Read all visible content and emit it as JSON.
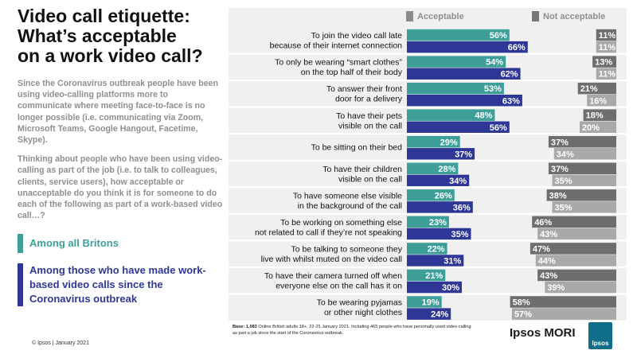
{
  "title": "Video call etiquette:\nWhat’s acceptable\non a work video call?",
  "intro": [
    "Since the Coronavirus outbreak people have been using video-calling platforms more to communicate where meeting face-to-face is no longer possible (i.e. communicating via Zoom, Microsoft Teams, Google Hangout, Facetime, Skype).",
    "Thinking about people who have been using video-calling as part of the job (i.e. to talk to colleagues, clients, service users), how acceptable or unacceptable do you think it is for someone to do each of the following as part of a work-based video call…?"
  ],
  "groups": {
    "all": "Among all Britons",
    "calls": "Among those who have made work-based video calls since the Coronavirus outbreak"
  },
  "legend": {
    "acceptable": "Acceptable",
    "not_acceptable": "Not acceptable"
  },
  "colors": {
    "acceptable_all": "#3e9f99",
    "acceptable_calls": "#2e3796",
    "not_acceptable_all": "#6e6e6e",
    "not_acceptable_calls": "#a9a9a9",
    "panel": "#f0f0f0"
  },
  "chart_data": {
    "type": "bar",
    "orientation": "horizontal",
    "categories": [
      "To join the video call late\nbecause of their internet connection",
      "To only be wearing “smart clothes”\non the top half of their body",
      "To answer their front\ndoor for a delivery",
      "To have their pets\nvisible on the call",
      "To be sitting on their bed",
      "To have their children\nvisible on the call",
      "To have someone else visible\nin the background of the call",
      "To be working on something else\nnot related to call if they’re not speaking",
      "To be talking to someone they\nlive with whilst muted on the video call",
      "To have their camera turned off when\neveryone else on the call has it on",
      "To be wearing pyjamas\nor other night clothes"
    ],
    "series": [
      {
        "name": "Acceptable – Among all Britons",
        "values": [
          56,
          54,
          53,
          48,
          29,
          28,
          26,
          23,
          22,
          21,
          19
        ]
      },
      {
        "name": "Acceptable – Among those who have made work-based video calls since the Coronavirus outbreak",
        "values": [
          66,
          62,
          63,
          56,
          37,
          34,
          36,
          35,
          31,
          30,
          24
        ]
      },
      {
        "name": "Not acceptable – Among all Britons",
        "values": [
          11,
          13,
          21,
          18,
          37,
          37,
          38,
          46,
          47,
          43,
          58
        ]
      },
      {
        "name": "Not acceptable – Among those who have made work-based video calls since the Coronavirus outbreak",
        "values": [
          11,
          11,
          16,
          20,
          34,
          35,
          35,
          43,
          44,
          39,
          57
        ]
      }
    ],
    "value_suffix": "%",
    "xlim": [
      0,
      100
    ],
    "legend_position": "top",
    "grid": false
  },
  "footnote_bold": "Base: 1,083",
  "footnote": " Online British adults 18+, 22-25 January 2021. Including 465 people who have personally used video-calling as part a job since the start of the Coronavirus outbreak.",
  "copyright": "© Ipsos | January 2021",
  "brand": "Ipsos MORI",
  "logo_text": "Ipsos"
}
